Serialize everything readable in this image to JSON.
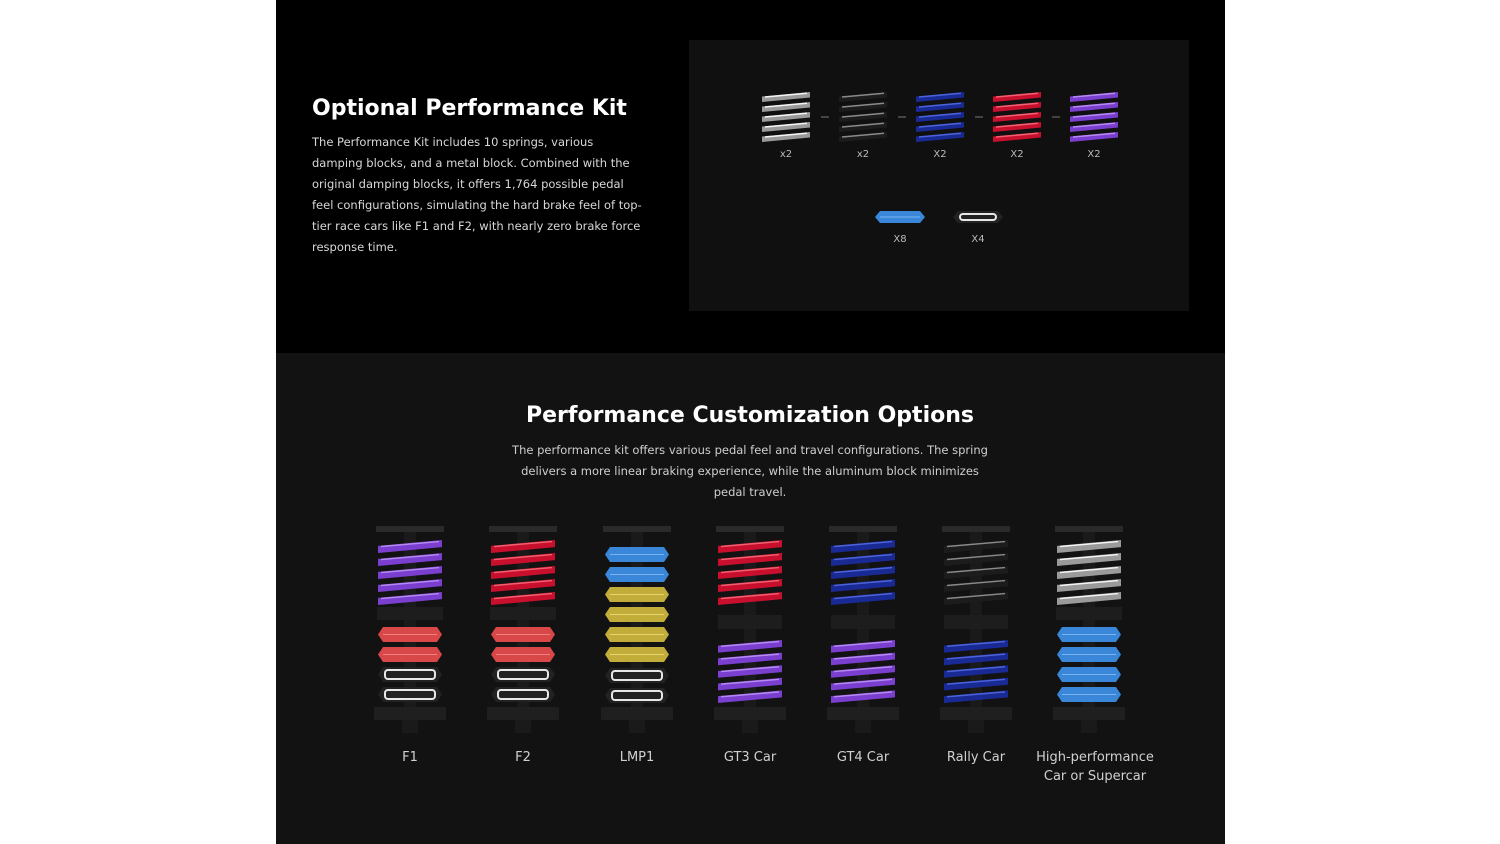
{
  "kit": {
    "title": "Optional Performance Kit",
    "description": "The Performance Kit includes 10 springs, various damping blocks, and a metal block. Combined with the original damping blocks, it offers 1,764 possible pedal feel configurations, simulating the hard brake feel of top-tier race cars like F1 and F2, with nearly zero brake force response time.",
    "spring_counts": [
      "x2",
      "x2",
      "X2",
      "X2",
      "X2"
    ],
    "block_counts": [
      "X8",
      "X4"
    ]
  },
  "customization": {
    "title": "Performance Customization Options",
    "description": "The performance kit offers various pedal feel and travel configurations. The spring delivers a more linear braking experience, while the aluminum block minimizes pedal travel.",
    "configs": [
      "F1",
      "F2",
      "LMP1",
      "GT3 Car",
      "GT4 Car",
      "Rally Car",
      "High-performance Car or Supercar"
    ]
  }
}
